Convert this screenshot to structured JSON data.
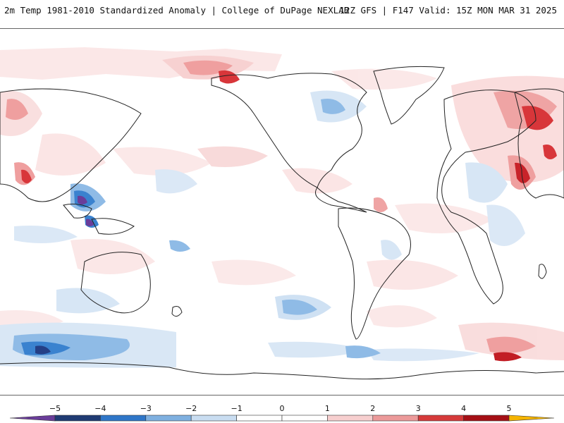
{
  "header": {
    "title_left": "2m Temp 1981-2010 Standardized Anomaly | College of DuPage NEXLAB",
    "title_right": "12Z GFS | F147 Valid: 15Z MON MAR 31 2025"
  },
  "colorbar": {
    "min": -6,
    "max": 6,
    "tick_labels": [
      "−5",
      "−4",
      "−3",
      "−2",
      "−1",
      "0",
      "1",
      "2",
      "3",
      "4",
      "5"
    ],
    "tick_values": [
      -5,
      -4,
      -3,
      -2,
      -1,
      0,
      1,
      2,
      3,
      4,
      5
    ],
    "segments": [
      {
        "from": -6,
        "to": -5,
        "color": "#6a3d9a"
      },
      {
        "from": -5,
        "to": -4,
        "color": "#1f3b73"
      },
      {
        "from": -4,
        "to": -3,
        "color": "#2f76c8"
      },
      {
        "from": -3,
        "to": -2,
        "color": "#7fb0e0"
      },
      {
        "from": -2,
        "to": -1,
        "color": "#c9ddf1"
      },
      {
        "from": -1,
        "to": 0,
        "color": "#ffffff"
      },
      {
        "from": 0,
        "to": 1,
        "color": "#ffffff"
      },
      {
        "from": 1,
        "to": 2,
        "color": "#f7cfcf"
      },
      {
        "from": 2,
        "to": 3,
        "color": "#ec9a9a"
      },
      {
        "from": 3,
        "to": 4,
        "color": "#d63a3a"
      },
      {
        "from": 4,
        "to": 5,
        "color": "#a50f15"
      },
      {
        "from": 5,
        "to": 6,
        "color": "#f5b400"
      }
    ]
  },
  "colors": {
    "warm_light": "#f9dcdc",
    "warm_mid": "#ef9f9f",
    "warm_strong": "#d8363a",
    "warm_extreme": "#a50f15",
    "cool_light": "#d7e6f5",
    "cool_mid": "#8fbbe6",
    "cool_strong": "#3a82cf",
    "cool_extreme": "#243f86",
    "purple": "#6a3d9a",
    "coast": "#222222"
  }
}
